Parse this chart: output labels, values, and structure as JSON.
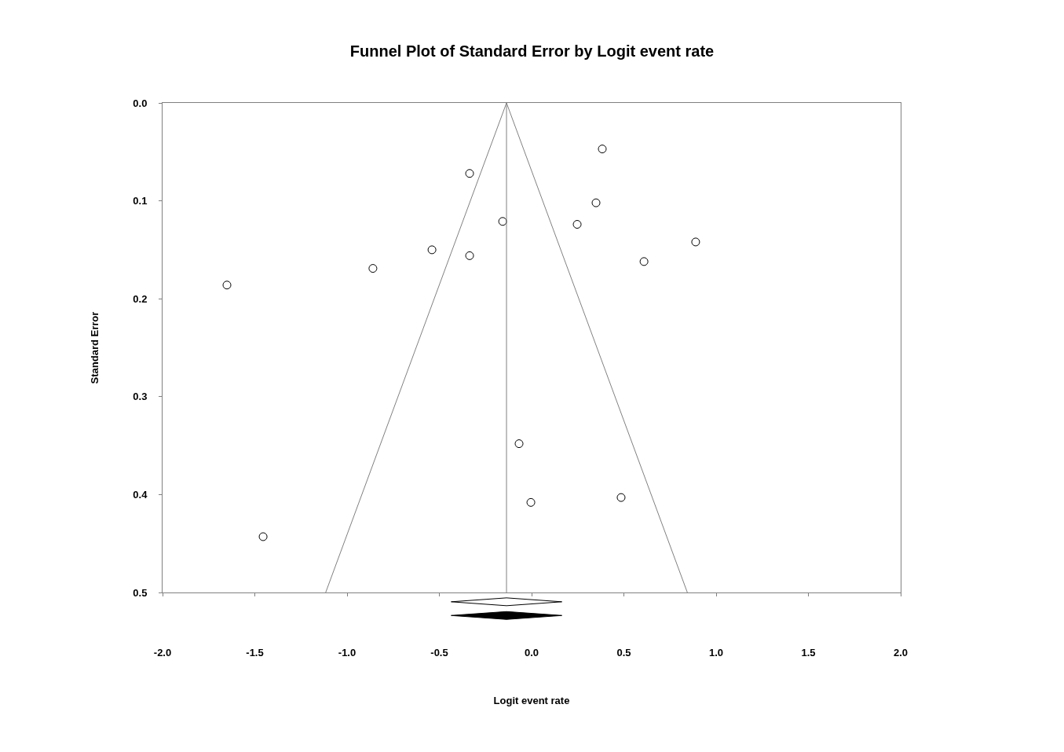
{
  "chart_data": {
    "type": "scatter",
    "title": "Funnel Plot of Standard Error by Logit event rate",
    "xlabel": "Logit event rate",
    "ylabel": "Standard Error",
    "x": [
      -1.651,
      -1.455,
      -0.86,
      -0.54,
      -0.336,
      -0.336,
      -0.157,
      -0.068,
      -0.004,
      0.247,
      0.349,
      0.383,
      0.485,
      0.609,
      0.889
    ],
    "series": [
      {
        "color": "#000000",
        "marker": "circle",
        "values": [
          0.186,
          0.443,
          0.169,
          0.15,
          0.072,
          0.156,
          0.121,
          0.348,
          0.408,
          0.124,
          0.102,
          0.047,
          0.403,
          0.162,
          0.142
        ]
      },
      {
        "type": "line",
        "color": "#808080",
        "x": [
          -1.116,
          -0.136,
          0.844
        ],
        "values": [
          0.5,
          0,
          0.5
        ]
      },
      {
        "type": "line",
        "color": "#808080",
        "x": [
          -0.136,
          -0.136
        ],
        "values": [
          0,
          0.5
        ]
      }
    ],
    "xlim": [
      -2,
      2
    ],
    "ylim": [
      0.5,
      0
    ],
    "xticks": [
      {
        "value": -2,
        "label": "-2.0"
      },
      {
        "value": -1.5,
        "label": "-1.5"
      },
      {
        "value": -1,
        "label": "-1.0"
      },
      {
        "value": -0.5,
        "label": "-0.5"
      },
      {
        "value": 0,
        "label": "0.0"
      },
      {
        "value": 0.5,
        "label": "0.5"
      },
      {
        "value": 1,
        "label": "1.0"
      },
      {
        "value": 1.5,
        "label": "1.5"
      },
      {
        "value": 2,
        "label": "2.0"
      }
    ],
    "yticks": [
      {
        "value": 0,
        "label": "0.0"
      },
      {
        "value": 0.1,
        "label": "0.1"
      },
      {
        "value": 0.2,
        "label": "0.2"
      },
      {
        "value": 0.3,
        "label": "0.3"
      },
      {
        "value": 0.4,
        "label": "0.4"
      },
      {
        "value": 0.5,
        "label": "0.5"
      }
    ],
    "grid": false
  }
}
